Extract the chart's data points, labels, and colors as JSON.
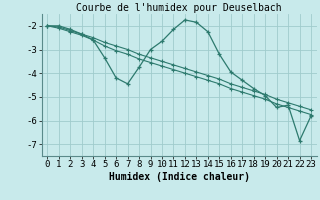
{
  "title": "Courbe de l'humidex pour Deuselbach",
  "xlabel": "Humidex (Indice chaleur)",
  "background_color": "#c8eaeb",
  "grid_color": "#a0cccc",
  "line_color": "#2d7a6e",
  "spine_color": "#5a8a8a",
  "x_values": [
    0,
    1,
    2,
    3,
    4,
    5,
    6,
    7,
    8,
    9,
    10,
    11,
    12,
    13,
    14,
    15,
    16,
    17,
    18,
    19,
    20,
    21,
    22,
    23
  ],
  "line1": [
    -2.0,
    -2.0,
    -2.15,
    -2.35,
    -2.6,
    -3.35,
    -4.2,
    -4.45,
    -3.75,
    -3.0,
    -2.65,
    -2.15,
    -1.75,
    -1.85,
    -2.25,
    -3.2,
    -3.95,
    -4.3,
    -4.65,
    -4.95,
    -5.45,
    -5.35,
    -6.85,
    -5.8
  ],
  "line2": [
    -2.0,
    -2.05,
    -2.2,
    -2.35,
    -2.5,
    -2.7,
    -2.85,
    -3.0,
    -3.2,
    -3.35,
    -3.5,
    -3.65,
    -3.8,
    -3.95,
    -4.1,
    -4.25,
    -4.45,
    -4.6,
    -4.75,
    -4.9,
    -5.1,
    -5.25,
    -5.4,
    -5.55
  ],
  "line3": [
    -2.0,
    -2.1,
    -2.25,
    -2.4,
    -2.6,
    -2.85,
    -3.05,
    -3.2,
    -3.4,
    -3.55,
    -3.7,
    -3.85,
    -4.0,
    -4.15,
    -4.3,
    -4.45,
    -4.65,
    -4.8,
    -4.95,
    -5.1,
    -5.3,
    -5.45,
    -5.6,
    -5.75
  ],
  "ylim": [
    -7.5,
    -1.5
  ],
  "xlim": [
    -0.5,
    23.5
  ],
  "yticks": [
    -7,
    -6,
    -5,
    -4,
    -3,
    -2
  ],
  "xticks": [
    0,
    1,
    2,
    3,
    4,
    5,
    6,
    7,
    8,
    9,
    10,
    11,
    12,
    13,
    14,
    15,
    16,
    17,
    18,
    19,
    20,
    21,
    22,
    23
  ],
  "title_fontsize": 7,
  "label_fontsize": 7,
  "tick_fontsize": 6.5
}
